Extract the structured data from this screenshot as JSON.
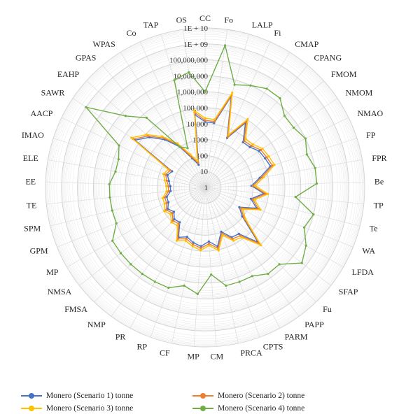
{
  "chart_data": {
    "type": "radar",
    "scale": "log10",
    "rlim": [
      1,
      10000000000
    ],
    "tick_labels": [
      "1",
      "10",
      "100",
      "1000",
      "10,000",
      "100,000",
      "1,000,000",
      "10,000,000",
      "100,000,000",
      "1E + 09",
      "1E + 10"
    ],
    "grid": true,
    "legend_position": "bottom",
    "categories": [
      "CC",
      "Fo",
      "LALP",
      "Fi",
      "CMAP",
      "CPANG",
      "FMOM",
      "NMOM",
      "NMAO",
      "FP",
      "FPR",
      "Be",
      "TP",
      "Te",
      "WA",
      "LFDA",
      "SFAP",
      "Fu",
      "PAPP",
      "PARM",
      "CPTS",
      "PRCA",
      "CM",
      "MP",
      "CF",
      "RP",
      "PR",
      "NMP",
      "FMSA",
      "NMSA",
      "MP",
      "GPM",
      "SPM",
      "TE",
      "EE",
      "ELE",
      "IMAO",
      "AACP",
      "SAWR",
      "EAHP",
      "GPAS",
      "WPAS",
      "Co",
      "TAP",
      "OS"
    ],
    "series": [
      {
        "name": "Monero (Scenario 1) tonne",
        "color": "#4472C4",
        "values": [
          13000,
          12000,
          900000,
          2500,
          60000,
          5000,
          6000,
          12000,
          15000,
          20000,
          3000,
          800,
          5000,
          900,
          3000,
          300,
          900,
          60000,
          4000,
          3500,
          900,
          6000,
          2500,
          5000,
          3500,
          2000,
          3500,
          500,
          600,
          300,
          500,
          300,
          300,
          150,
          150,
          200,
          300,
          200,
          200000,
          50000,
          8000,
          1000,
          100,
          30,
          40000
        ]
      },
      {
        "name": "Monero (Scenario 2) tonne",
        "color": "#ED7D31",
        "values": [
          16000,
          15000,
          1100000,
          3000,
          80000,
          6500,
          8000,
          16000,
          20000,
          27000,
          4000,
          1000,
          6500,
          1200,
          4000,
          400,
          1200,
          80000,
          5500,
          4500,
          1200,
          8000,
          3500,
          6500,
          4500,
          2700,
          4500,
          650,
          800,
          400,
          650,
          400,
          400,
          200,
          200,
          270,
          400,
          270,
          270000,
          65000,
          11000,
          1300,
          130,
          40,
          55000
        ]
      },
      {
        "name": "Monero (Scenario 3) tonne",
        "color": "#FFC000",
        "values": [
          22000,
          20000,
          1500000,
          4000,
          110000,
          9000,
          11000,
          22000,
          28000,
          37000,
          5500,
          1400,
          9000,
          1600,
          5500,
          550,
          1600,
          110000,
          7500,
          6000,
          1600,
          11000,
          4500,
          9000,
          6000,
          3700,
          6000,
          900,
          1100,
          550,
          900,
          550,
          550,
          270,
          270,
          370,
          550,
          370,
          370000,
          90000,
          15000,
          1800,
          180,
          55,
          75000
        ]
      },
      {
        "name": "Monero (Scenario 4) tonne",
        "color": "#70AD47",
        "values": [
          1000000,
          1000000000,
          5000000,
          10000000,
          20000000,
          20000000,
          5000000,
          5000000,
          10000000,
          5000000,
          10000000,
          10000000,
          500000,
          10000000,
          5000000,
          20000000,
          50000000,
          5000000,
          5000000,
          2000000,
          2000000,
          2000000,
          300000,
          5000000,
          2000000,
          5000000,
          5000000,
          5000000,
          5000000,
          5000000,
          5000000,
          1000000,
          1000000,
          1000000,
          1000000,
          500000,
          500000,
          1000000,
          1000000000,
          5000000,
          500000,
          1000,
          500,
          10000000,
          20000000
        ]
      }
    ]
  }
}
